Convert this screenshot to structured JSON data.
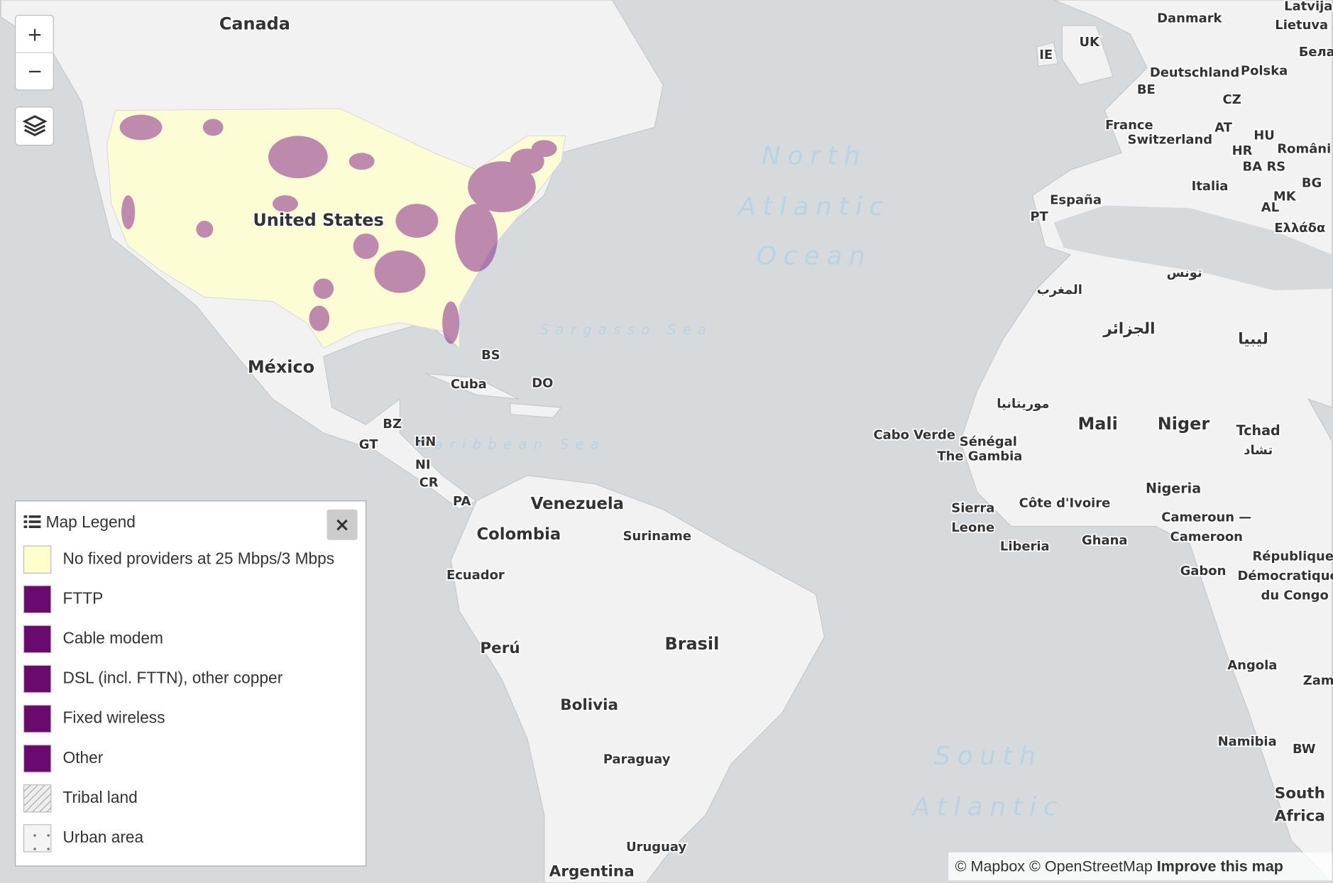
{
  "controls": {
    "zoom_in": "+",
    "zoom_out": "−"
  },
  "map_labels": [
    "Canada",
    "United States",
    "México",
    "Cuba",
    "BS",
    "DO",
    "BZ",
    "GT",
    "HN",
    "NI",
    "CR",
    "PA",
    "Venezuela",
    "Colombia",
    "Suriname",
    "Ecuador",
    "Perú",
    "Brasil",
    "Bolivia",
    "Paraguay",
    "Uruguay",
    "Argentina",
    "Danmark",
    "Latvija",
    "Lietuva",
    "UK",
    "IE",
    "Бела",
    "Deutschland",
    "Polska",
    "BE",
    "CZ",
    "France",
    "AT",
    "HU",
    "Switzerland",
    "HR",
    "Românі",
    "BA",
    "RS",
    "Italia",
    "BG",
    "MK",
    "AL",
    "España",
    "PT",
    "Ελλάδα",
    "تونس",
    "المغرب",
    "الجزائر",
    "ليبيا",
    "موريتانيا",
    "Mali",
    "Niger",
    "Tchad",
    "تشاد",
    "Cabo Verde",
    "Sénégal",
    "The Gambia",
    "Nigeria",
    "Sierra",
    "Leone",
    "Côte d'Ivoire",
    "Cameroun —",
    "Cameroon",
    "Liberia",
    "Ghana",
    "République",
    "Démocratique",
    "du Congo",
    "Gabon",
    "Angola",
    "Zam",
    "Namibia",
    "BW",
    "South",
    "Africa"
  ],
  "ocean_labels": [
    "North",
    "Atlantic",
    "Ocean",
    "Sargasso Sea",
    "Caribbean Sea",
    "South",
    "Atlantic"
  ],
  "legend": {
    "title": "Map Legend",
    "close": "×",
    "items": [
      {
        "label": "No fixed providers at 25 Mbps/3 Mbps",
        "color": "#ffffcc"
      },
      {
        "label": "FTTP",
        "color": "#6a0a6e"
      },
      {
        "label": "Cable modem",
        "color": "#6a0a6e"
      },
      {
        "label": "DSL (incl. FTTN), other copper",
        "color": "#6a0a6e"
      },
      {
        "label": "Fixed wireless",
        "color": "#6a0a6e"
      },
      {
        "label": "Other",
        "color": "#6a0a6e"
      },
      {
        "label": "Tribal land",
        "color": "hatch"
      },
      {
        "label": "Urban area",
        "color": "dots"
      }
    ]
  },
  "attribution": {
    "mapbox": "© Mapbox",
    "osm": "© OpenStreetMap",
    "improve": "Improve this map"
  }
}
